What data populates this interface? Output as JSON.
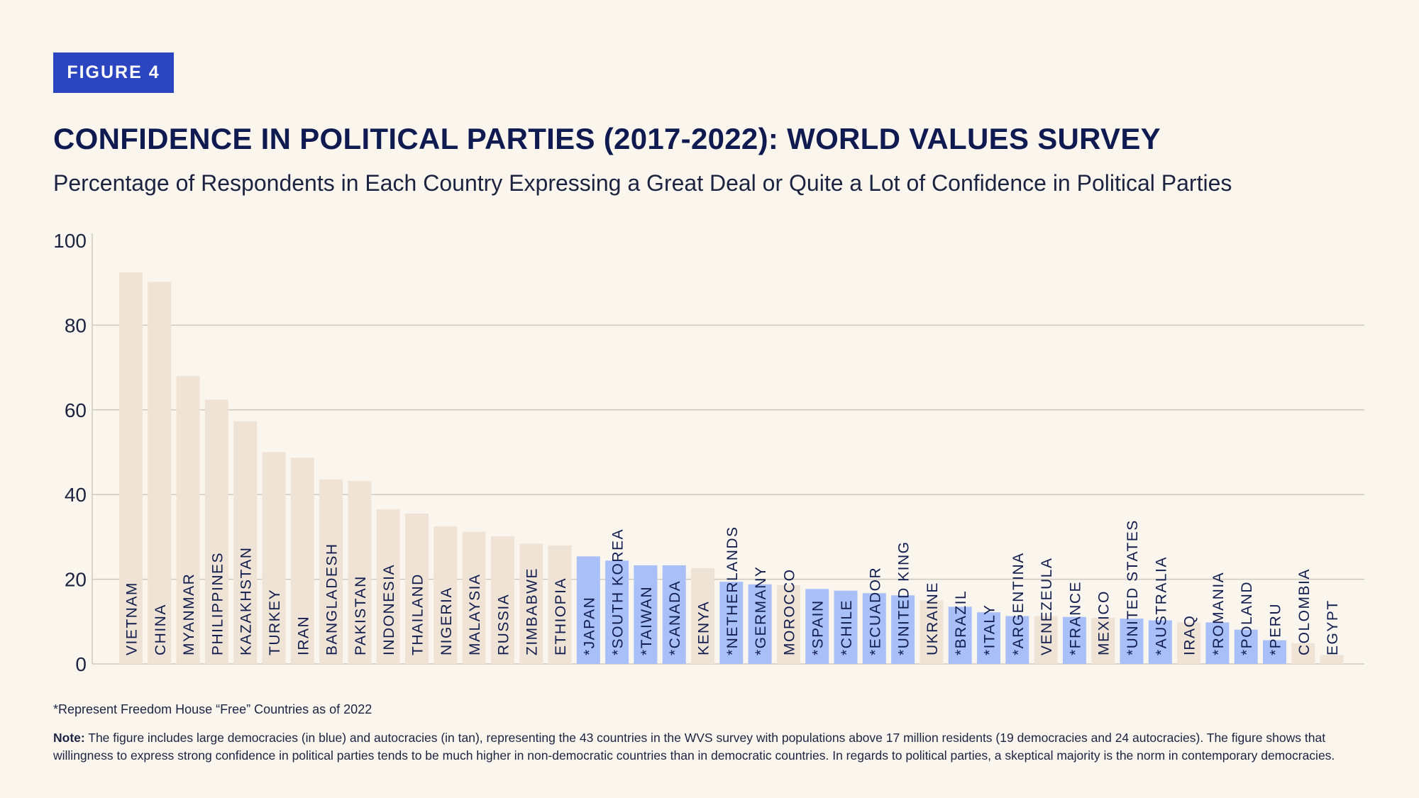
{
  "badge": "FIGURE 4",
  "colors": {
    "democracy": "#a8bff8",
    "autocracy": "#efe3d5",
    "title": "#0f1a50",
    "badge": "#2b45c0"
  },
  "footnote": "*Represent Freedom House “Free” Countries as of 2022",
  "note_label": "Note:",
  "note_text": " The figure includes large democracies (in blue) and autocracies (in tan), representing the 43 countries in the WVS survey with populations above 17 million residents (19 democracies and 24 autocracies). The figure shows that willingness to express strong confidence in political parties tends to be much higher in non-democratic countries than in democratic countries. In regards to political parties, a skeptical majority is the norm in contemporary democracies.",
  "chart_data": {
    "type": "bar",
    "title": "CONFIDENCE IN POLITICAL PARTIES (2017-2022): WORLD VALUES SURVEY",
    "subtitle": "Percentage of Respondents in Each Country Expressing a Great Deal or Quite a Lot of Confidence in Political Parties",
    "xlabel": "",
    "ylabel": "",
    "ylim": [
      0,
      100
    ],
    "yticks": [
      0,
      20,
      40,
      60,
      80,
      100
    ],
    "grid": true,
    "categories": [
      "VIETNAM",
      "CHINA",
      "MYANMAR",
      "PHILIPPINES",
      "KAZAKHSTAN",
      "TURKEY",
      "IRAN",
      "BANGLADESH",
      "PAKISTAN",
      "INDONESIA",
      "THAILAND",
      "NIGERIA",
      "MALAYSIA",
      "RUSSIA",
      "ZIMBABWE",
      "ETHIOPIA",
      "*JAPAN",
      "*SOUTH KOREA",
      "*TAIWAN",
      "*CANADA",
      "KENYA",
      "*NETHERLANDS",
      "*GERMANY",
      "MOROCCO",
      "*SPAIN",
      "*CHILE",
      "*ECUADOR",
      "*UNITED KING",
      "UKRAINE",
      "*BRAZIL",
      "*ITALY",
      "*ARGENTINA",
      "VENEZEULA",
      "*FRANCE",
      "MEXICO",
      "*UNITED STATES",
      "*AUSTRALIA",
      "IRAQ",
      "*ROMANIA",
      "*POLAND",
      "*PERU",
      "COLOMBIA",
      "EGYPT"
    ],
    "values": [
      92.5,
      90.2,
      68,
      62.4,
      57.3,
      50,
      48.7,
      43.6,
      43.2,
      36.5,
      35.5,
      32.5,
      31.2,
      30.1,
      28.4,
      28,
      25.4,
      24.4,
      23.3,
      23.3,
      22.6,
      19.4,
      18.8,
      18.6,
      17.7,
      17.3,
      16.7,
      16.2,
      15,
      13.5,
      12.2,
      11.3,
      11.3,
      11.1,
      10.9,
      10.7,
      10.3,
      9.8,
      9.8,
      8.1,
      5.6,
      4.9,
      2.1
    ],
    "democracy": [
      false,
      false,
      false,
      false,
      false,
      false,
      false,
      false,
      false,
      false,
      false,
      false,
      false,
      false,
      false,
      false,
      true,
      true,
      true,
      true,
      false,
      true,
      true,
      false,
      true,
      true,
      true,
      true,
      false,
      true,
      true,
      true,
      false,
      true,
      false,
      true,
      true,
      false,
      true,
      true,
      true,
      false,
      false
    ]
  }
}
